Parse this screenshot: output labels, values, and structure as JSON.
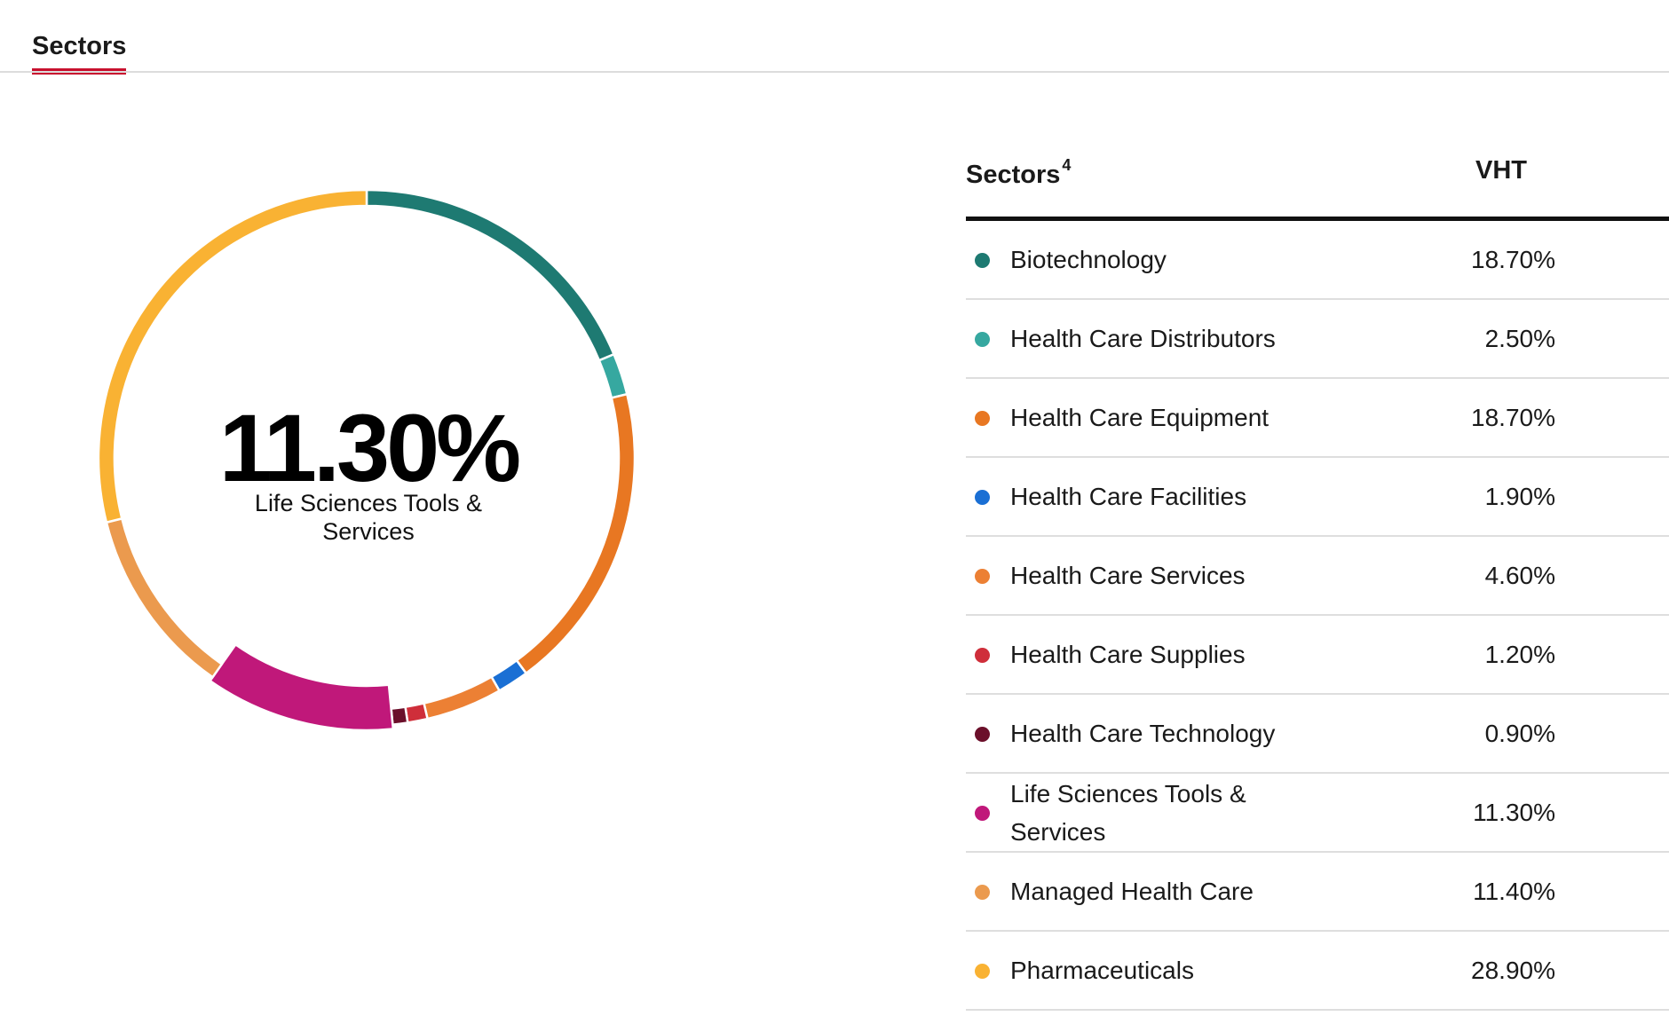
{
  "tabs": [
    {
      "label": "Sectors",
      "active": true
    }
  ],
  "center": {
    "value": "11.30%",
    "label": "Life Sciences Tools & Services"
  },
  "table": {
    "header_sector": "Sectors",
    "header_footnote": "4",
    "header_fund": "VHT"
  },
  "chart_data": {
    "type": "pie",
    "style": "donut",
    "highlighted": "Life Sciences Tools & Services",
    "categories": [
      "Biotechnology",
      "Health Care Distributors",
      "Health Care Equipment",
      "Health Care Facilities",
      "Health Care Services",
      "Health Care Supplies",
      "Health Care Technology",
      "Life Sciences Tools & Services",
      "Managed Health Care",
      "Pharmaceuticals"
    ],
    "values": [
      18.7,
      2.5,
      18.7,
      1.9,
      4.6,
      1.2,
      0.9,
      11.3,
      11.4,
      28.9
    ],
    "labels": [
      "18.70%",
      "2.50%",
      "18.70%",
      "1.90%",
      "4.60%",
      "1.20%",
      "0.90%",
      "11.30%",
      "11.40%",
      "28.90%"
    ],
    "colors": [
      "#1e7a72",
      "#36a8a0",
      "#e87722",
      "#1a6fd4",
      "#ec8034",
      "#cf2e3a",
      "#6b0f2a",
      "#c0187a",
      "#eb9a4e",
      "#f9b233"
    ]
  }
}
